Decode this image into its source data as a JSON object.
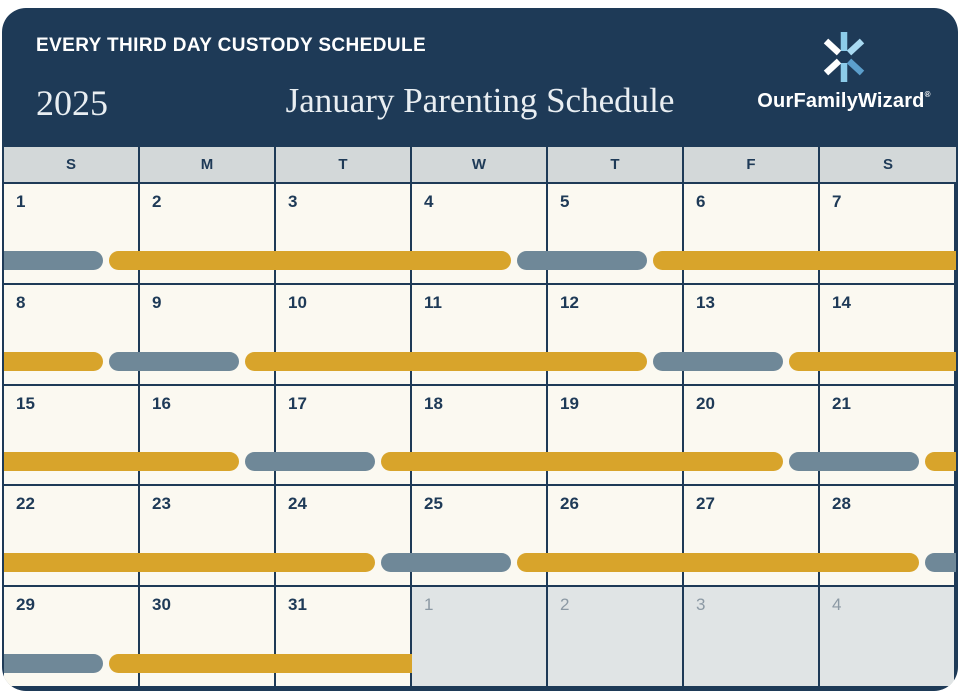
{
  "header": {
    "eyebrow": "EVERY THIRD DAY CUSTODY SCHEDULE",
    "year": "2025",
    "title": "January Parenting Schedule",
    "brand": {
      "name": "OurFamilyWizard",
      "mark": "®"
    }
  },
  "colors": {
    "navy": "#1E3A57",
    "gold": "#D8A42B",
    "slate": "#6F8898",
    "header_text": "#E9EEF2",
    "cell_bg": "#FBF9F1",
    "day_header_bg": "#D3D8D9",
    "next_month_bg": "#E0E4E5",
    "next_month_text": "#8C99A4",
    "logo_blue_light": "#A9DAF2",
    "logo_blue_mid": "#8CCBE8",
    "logo_blue_dark": "#5C9FCC",
    "logo_white": "#FFFFFF"
  },
  "calendar": {
    "day_headers": [
      "S",
      "M",
      "T",
      "W",
      "T",
      "F",
      "S"
    ],
    "weeks": [
      {
        "days": [
          {
            "label": "1",
            "muted": false
          },
          {
            "label": "2",
            "muted": false
          },
          {
            "label": "3",
            "muted": false
          },
          {
            "label": "4",
            "muted": false
          },
          {
            "label": "5",
            "muted": false
          },
          {
            "label": "6",
            "muted": false
          },
          {
            "label": "7",
            "muted": false
          }
        ],
        "segments": [
          {
            "color_key": "slate",
            "start": 0,
            "end": 0.75,
            "round_left": false,
            "round_right": true
          },
          {
            "color_key": "gold",
            "start": 0.75,
            "end": 3.75,
            "round_left": true,
            "round_right": true
          },
          {
            "color_key": "slate",
            "start": 3.75,
            "end": 4.75,
            "round_left": true,
            "round_right": true
          },
          {
            "color_key": "gold",
            "start": 4.75,
            "end": 7,
            "round_left": true,
            "round_right": false
          }
        ]
      },
      {
        "days": [
          {
            "label": "8",
            "muted": false
          },
          {
            "label": "9",
            "muted": false
          },
          {
            "label": "10",
            "muted": false
          },
          {
            "label": "11",
            "muted": false
          },
          {
            "label": "12",
            "muted": false
          },
          {
            "label": "13",
            "muted": false
          },
          {
            "label": "14",
            "muted": false
          }
        ],
        "segments": [
          {
            "color_key": "gold",
            "start": 0,
            "end": 0.75,
            "round_left": false,
            "round_right": true
          },
          {
            "color_key": "slate",
            "start": 0.75,
            "end": 1.75,
            "round_left": true,
            "round_right": true
          },
          {
            "color_key": "gold",
            "start": 1.75,
            "end": 4.75,
            "round_left": true,
            "round_right": true
          },
          {
            "color_key": "slate",
            "start": 4.75,
            "end": 5.75,
            "round_left": true,
            "round_right": true
          },
          {
            "color_key": "gold",
            "start": 5.75,
            "end": 7,
            "round_left": true,
            "round_right": false
          }
        ]
      },
      {
        "days": [
          {
            "label": "15",
            "muted": false
          },
          {
            "label": "16",
            "muted": false
          },
          {
            "label": "17",
            "muted": false
          },
          {
            "label": "18",
            "muted": false
          },
          {
            "label": "19",
            "muted": false
          },
          {
            "label": "20",
            "muted": false
          },
          {
            "label": "21",
            "muted": false
          }
        ],
        "segments": [
          {
            "color_key": "gold",
            "start": 0,
            "end": 1.75,
            "round_left": false,
            "round_right": true
          },
          {
            "color_key": "slate",
            "start": 1.75,
            "end": 2.75,
            "round_left": true,
            "round_right": true
          },
          {
            "color_key": "gold",
            "start": 2.75,
            "end": 5.75,
            "round_left": true,
            "round_right": true
          },
          {
            "color_key": "slate",
            "start": 5.75,
            "end": 6.75,
            "round_left": true,
            "round_right": true
          },
          {
            "color_key": "gold",
            "start": 6.75,
            "end": 7,
            "round_left": true,
            "round_right": false
          }
        ]
      },
      {
        "days": [
          {
            "label": "22",
            "muted": false
          },
          {
            "label": "23",
            "muted": false
          },
          {
            "label": "24",
            "muted": false
          },
          {
            "label": "25",
            "muted": false
          },
          {
            "label": "26",
            "muted": false
          },
          {
            "label": "27",
            "muted": false
          },
          {
            "label": "28",
            "muted": false
          }
        ],
        "segments": [
          {
            "color_key": "gold",
            "start": 0,
            "end": 2.75,
            "round_left": false,
            "round_right": true
          },
          {
            "color_key": "slate",
            "start": 2.75,
            "end": 3.75,
            "round_left": true,
            "round_right": true
          },
          {
            "color_key": "gold",
            "start": 3.75,
            "end": 6.75,
            "round_left": true,
            "round_right": true
          },
          {
            "color_key": "slate",
            "start": 6.75,
            "end": 7,
            "round_left": true,
            "round_right": false
          }
        ]
      },
      {
        "days": [
          {
            "label": "29",
            "muted": false
          },
          {
            "label": "30",
            "muted": false
          },
          {
            "label": "31",
            "muted": false
          },
          {
            "label": "1",
            "muted": true
          },
          {
            "label": "2",
            "muted": true
          },
          {
            "label": "3",
            "muted": true
          },
          {
            "label": "4",
            "muted": true
          }
        ],
        "segments": [
          {
            "color_key": "slate",
            "start": 0,
            "end": 0.75,
            "round_left": false,
            "round_right": true
          },
          {
            "color_key": "gold",
            "start": 0.75,
            "end": 3,
            "round_left": true,
            "round_right": false
          }
        ]
      }
    ]
  }
}
